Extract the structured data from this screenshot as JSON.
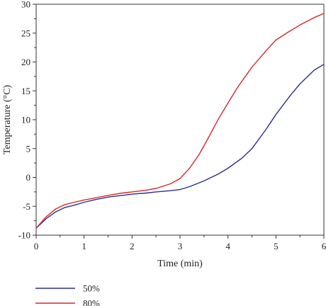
{
  "chart_data": {
    "type": "line",
    "title": "",
    "xlabel": "Time (min)",
    "ylabel": "Temperature (°C)",
    "xlim": [
      0,
      6
    ],
    "ylim": [
      -10,
      30
    ],
    "x_ticks": [
      0,
      1,
      2,
      3,
      4,
      5,
      6
    ],
    "y_ticks": [
      -10,
      -5,
      0,
      5,
      10,
      15,
      20,
      25,
      30
    ],
    "grid": false,
    "legend_position": "bottom-left",
    "series": [
      {
        "name": "50%",
        "color": "#2b2f8f",
        "x": [
          0,
          0.2,
          0.4,
          0.6,
          0.8,
          1.0,
          1.2,
          1.5,
          1.8,
          2.0,
          2.3,
          2.5,
          2.8,
          3.0,
          3.2,
          3.5,
          3.8,
          4.0,
          4.3,
          4.5,
          4.8,
          5.0,
          5.3,
          5.5,
          5.8,
          6.0
        ],
        "y": [
          -8.8,
          -7.2,
          -6.0,
          -5.2,
          -4.8,
          -4.3,
          -3.9,
          -3.4,
          -3.1,
          -2.9,
          -2.7,
          -2.5,
          -2.3,
          -2.1,
          -1.6,
          -0.6,
          0.6,
          1.6,
          3.4,
          5.0,
          8.4,
          10.9,
          14.2,
          16.2,
          18.6,
          19.6
        ]
      },
      {
        "name": "80%",
        "color": "#d9262c",
        "x": [
          0,
          0.2,
          0.4,
          0.6,
          0.8,
          1.0,
          1.2,
          1.5,
          1.8,
          2.0,
          2.3,
          2.5,
          2.8,
          3.0,
          3.2,
          3.4,
          3.6,
          3.8,
          4.0,
          4.2,
          4.5,
          4.8,
          5.0,
          5.3,
          5.5,
          5.8,
          6.0
        ],
        "y": [
          -8.8,
          -6.9,
          -5.5,
          -4.7,
          -4.3,
          -3.9,
          -3.6,
          -3.1,
          -2.7,
          -2.5,
          -2.2,
          -1.9,
          -1.1,
          -0.2,
          1.6,
          4.0,
          7.0,
          10.1,
          12.9,
          15.6,
          19.1,
          22.0,
          23.8,
          25.4,
          26.4,
          27.7,
          28.4
        ]
      }
    ]
  }
}
